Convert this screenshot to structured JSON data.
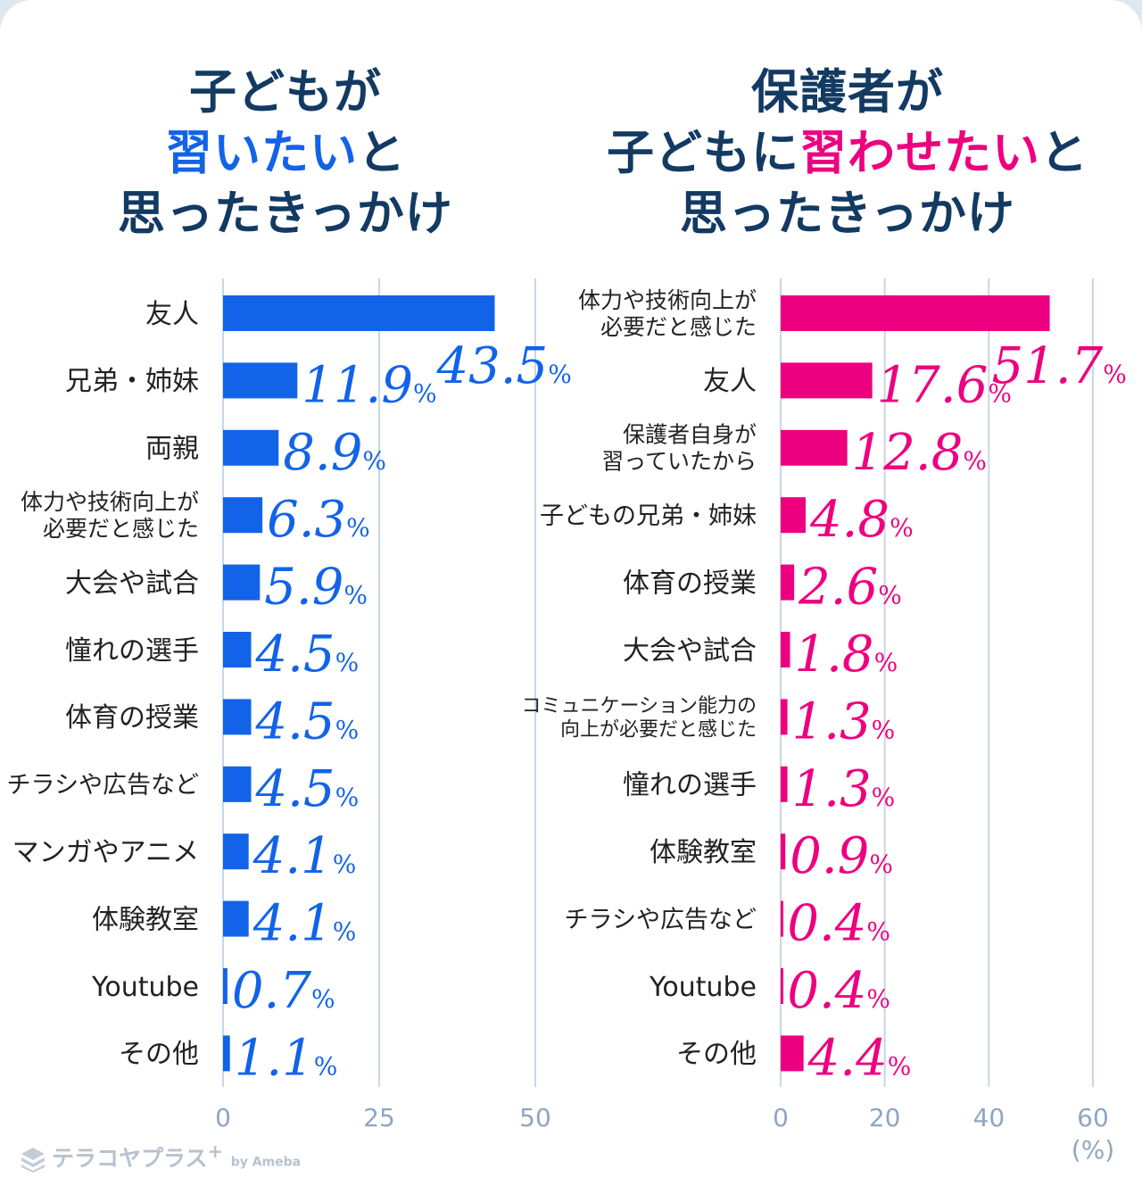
{
  "titles": {
    "left": {
      "line1": "子どもが",
      "line2_hl": "習いたい",
      "line2_rest": "と",
      "line3": "思ったきっかけ"
    },
    "right": {
      "line1": "保護者が",
      "line2_pre": "子どもに",
      "line2_hl": "習わせたい",
      "line2_rest": "と",
      "line3": "思ったきっかけ"
    }
  },
  "colors": {
    "left_bar": "#1263e8",
    "right_bar": "#ed007f",
    "title": "#123a63",
    "grid": "#c9d6e4"
  },
  "chart_data": [
    {
      "type": "bar",
      "orientation": "horizontal",
      "title": "子どもが習いたいと思ったきっかけ",
      "categories": [
        [
          "友人"
        ],
        [
          "兄弟・姉妹"
        ],
        [
          "両親"
        ],
        [
          "体力や技術向上が",
          "必要だと感じた"
        ],
        [
          "大会や試合"
        ],
        [
          "憧れの選手"
        ],
        [
          "体育の授業"
        ],
        [
          "チラシや広告など"
        ],
        [
          "マンガやアニメ"
        ],
        [
          "体験教室"
        ],
        [
          "Youtube"
        ],
        [
          "その他"
        ]
      ],
      "values": [
        43.5,
        11.9,
        8.9,
        6.3,
        5.9,
        4.5,
        4.5,
        4.5,
        4.1,
        4.1,
        0.7,
        1.1
      ],
      "value_labels": [
        "43.5",
        "11.9",
        "8.9",
        "6.3",
        "5.9",
        "4.5",
        "4.5",
        "4.5",
        "4.1",
        "4.1",
        "0.7",
        "1.1"
      ],
      "xlim": [
        0,
        50
      ],
      "xticks": [
        "0",
        "25",
        "50"
      ],
      "unit": "%"
    },
    {
      "type": "bar",
      "orientation": "horizontal",
      "title": "保護者が子どもに習わせたいと思ったきっかけ",
      "categories": [
        [
          "体力や技術向上が",
          "必要だと感じた"
        ],
        [
          "友人"
        ],
        [
          "保護者自身が",
          "習っていたから"
        ],
        [
          "子どもの兄弟・姉妹"
        ],
        [
          "体育の授業"
        ],
        [
          "大会や試合"
        ],
        [
          "コミュニケーション能力の",
          "向上が必要だと感じた"
        ],
        [
          "憧れの選手"
        ],
        [
          "体験教室"
        ],
        [
          "チラシや広告など"
        ],
        [
          "Youtube"
        ],
        [
          "その他"
        ]
      ],
      "values": [
        51.7,
        17.6,
        12.8,
        4.8,
        2.6,
        1.8,
        1.3,
        1.3,
        0.9,
        0.4,
        0.4,
        4.4
      ],
      "value_labels": [
        "51.7",
        "17.6",
        "12.8",
        "4.8",
        "2.6",
        "1.8",
        "1.3",
        "1.3",
        "0.9",
        "0.4",
        "0.4",
        "4.4"
      ],
      "xlim": [
        0,
        60
      ],
      "xticks": [
        "0",
        "20",
        "40",
        "60"
      ],
      "unit": "%",
      "axis_unit_label": "(%)"
    }
  ],
  "logo": {
    "text": "テラコヤプラス",
    "plus": "+",
    "by": "by Ameba"
  }
}
